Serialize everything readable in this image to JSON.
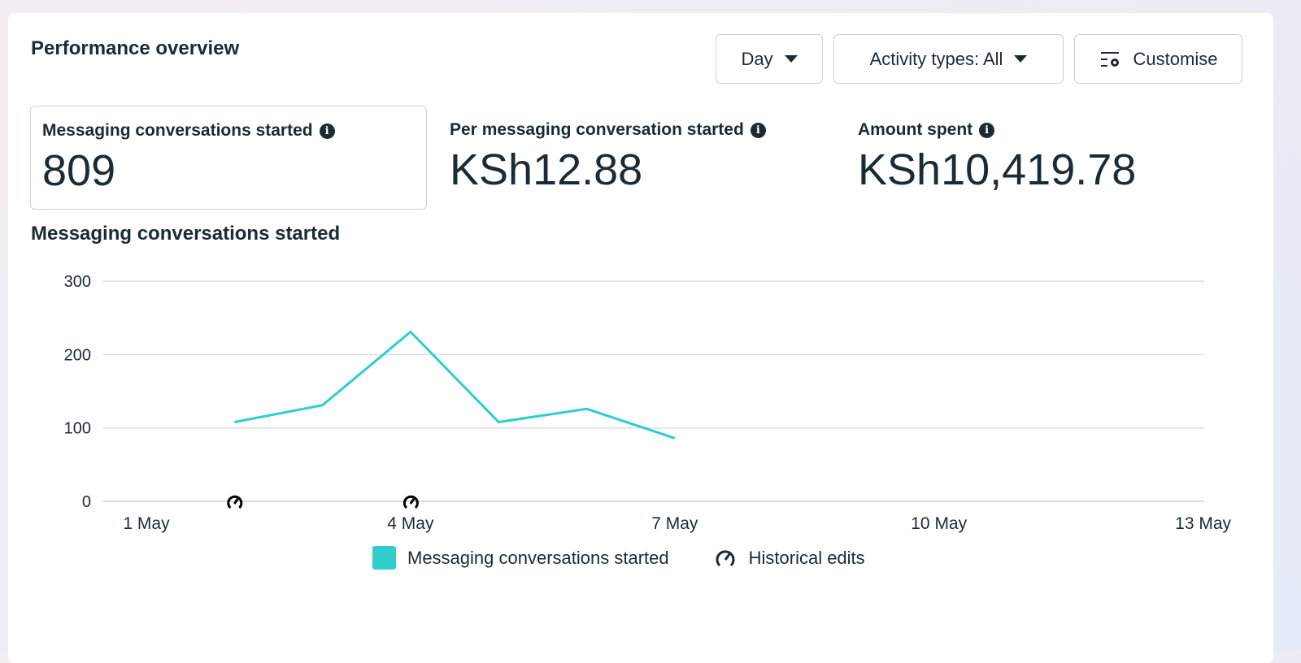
{
  "header": {
    "title": "Performance overview",
    "day_label": "Day",
    "activity_label": "Activity types: All",
    "customise_label": "Customise"
  },
  "metrics": [
    {
      "label": "Messaging conversations started",
      "value": "809"
    },
    {
      "label": "Per messaging conversation started",
      "value": "KSh12.88"
    },
    {
      "label": "Amount spent",
      "value": "KSh10,419.78"
    }
  ],
  "colors": {
    "series": "#2fcdcd",
    "grid": "#dadde1"
  },
  "chart_data": {
    "type": "line",
    "title": "Messaging conversations started",
    "x": [
      "2 May",
      "3 May",
      "4 May",
      "5 May",
      "6 May",
      "7 May"
    ],
    "x_day": [
      2,
      3,
      4,
      5,
      6,
      7
    ],
    "series": [
      {
        "name": "Messaging conversations started",
        "values": [
          108,
          131,
          231,
          108,
          126,
          86
        ]
      }
    ],
    "historical_edits_days": [
      2,
      4
    ],
    "xticks": [
      {
        "day": 1,
        "label": "1 May"
      },
      {
        "day": 4,
        "label": "4 May"
      },
      {
        "day": 7,
        "label": "7 May"
      },
      {
        "day": 10,
        "label": "10 May"
      },
      {
        "day": 13,
        "label": "13 May"
      }
    ],
    "yticks": [
      0,
      100,
      200,
      300
    ],
    "ylim": [
      0,
      300
    ],
    "xlim": [
      1,
      13
    ],
    "legend": [
      "Messaging conversations started",
      "Historical edits"
    ],
    "legend_placement": "bottom"
  }
}
